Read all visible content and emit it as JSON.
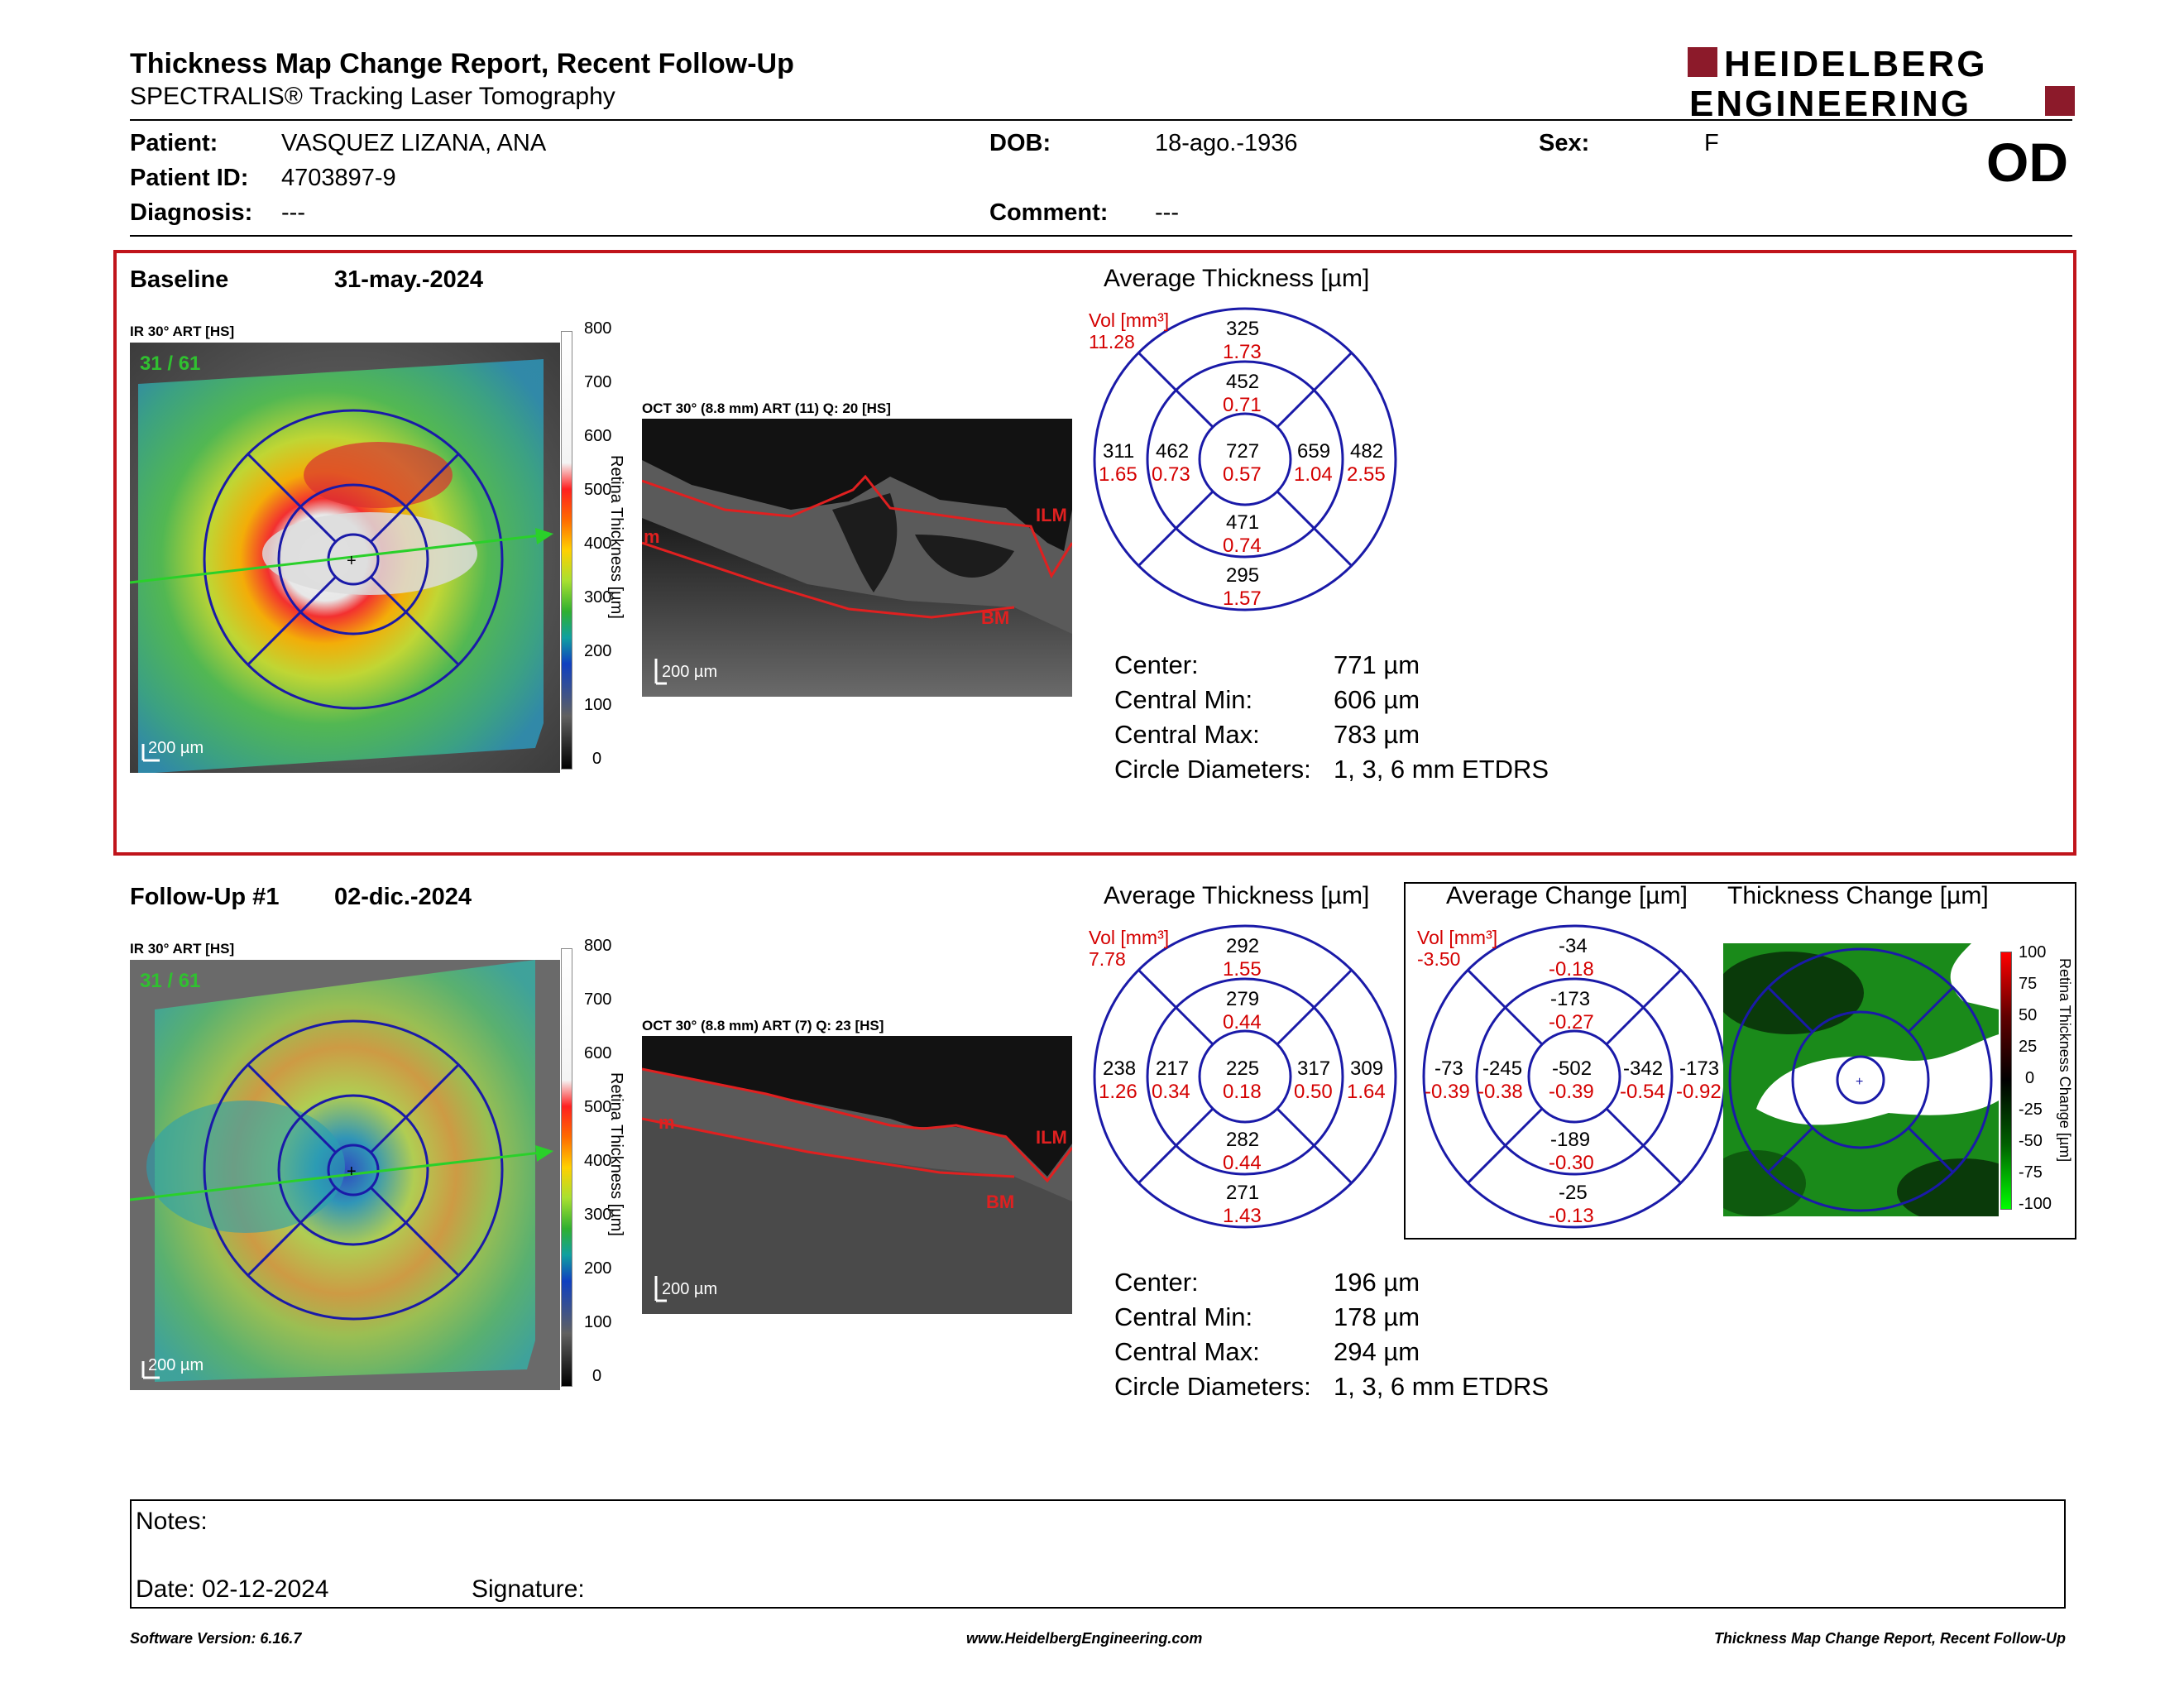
{
  "header": {
    "title": "Thickness Map Change Report, Recent Follow-Up",
    "subtitle": "SPECTRALIS® Tracking Laser Tomography",
    "logo_line1": "HEIDELBERG",
    "logo_line2": "ENGINEERING",
    "eye": "OD"
  },
  "patient": {
    "patient_label": "Patient:",
    "patient_value": "VASQUEZ LIZANA, ANA",
    "id_label": "Patient ID:",
    "id_value": "4703897-9",
    "diagnosis_label": "Diagnosis:",
    "diagnosis_value": "---",
    "dob_label": "DOB:",
    "dob_value": "18-ago.-1936",
    "comment_label": "Comment:",
    "comment_value": "---",
    "sex_label": "Sex:",
    "sex_value": "F"
  },
  "baseline": {
    "label": "Baseline",
    "date": "31-may.-2024",
    "ir_label": "IR 30° ART [HS]",
    "ir_overlay": "31 / 61",
    "ir_scale": "200 µm",
    "oct_label": "OCT 30° (8.8 mm) ART (11) Q: 20 [HS]",
    "oct_scale": "200 µm",
    "scale_ticks": [
      "800",
      "700",
      "600",
      "500",
      "400",
      "300",
      "200",
      "100",
      "0"
    ],
    "scale_title": "Retina Thickness [µm]",
    "chart_title": "Average Thickness [µm]",
    "vol_label": "Vol [mm³]",
    "vol_total": "11.28",
    "sectors": {
      "outer_top": [
        "325",
        "1.73"
      ],
      "inner_top": [
        "452",
        "0.71"
      ],
      "outer_left": [
        "311",
        "1.65"
      ],
      "inner_left": [
        "462",
        "0.73"
      ],
      "center": [
        "727",
        "0.57"
      ],
      "inner_right": [
        "659",
        "1.04"
      ],
      "outer_right": [
        "482",
        "2.55"
      ],
      "inner_bottom": [
        "471",
        "0.74"
      ],
      "outer_bottom": [
        "295",
        "1.57"
      ]
    },
    "stats": [
      {
        "label": "Center:",
        "value": "771 µm"
      },
      {
        "label": "Central Min:",
        "value": "606 µm"
      },
      {
        "label": "Central Max:",
        "value": "783 µm"
      },
      {
        "label": "Circle Diameters:",
        "value": "1, 3, 6 mm ETDRS"
      }
    ]
  },
  "followup": {
    "label": "Follow-Up #1",
    "date": "02-dic.-2024",
    "ir_label": "IR 30° ART [HS]",
    "ir_overlay": "31 / 61",
    "ir_scale": "200 µm",
    "oct_label": "OCT 30° (8.8 mm) ART (7) Q: 23 [HS]",
    "oct_scale": "200 µm",
    "scale_ticks": [
      "800",
      "700",
      "600",
      "500",
      "400",
      "300",
      "200",
      "100",
      "0"
    ],
    "scale_title": "Retina Thickness [µm]",
    "chart_title": "Average Thickness [µm]",
    "vol_label": "Vol [mm³]",
    "vol_total": "7.78",
    "sectors": {
      "outer_top": [
        "292",
        "1.55"
      ],
      "inner_top": [
        "279",
        "0.44"
      ],
      "outer_left": [
        "238",
        "1.26"
      ],
      "inner_left": [
        "217",
        "0.34"
      ],
      "center": [
        "225",
        "0.18"
      ],
      "inner_right": [
        "317",
        "0.50"
      ],
      "outer_right": [
        "309",
        "1.64"
      ],
      "inner_bottom": [
        "282",
        "0.44"
      ],
      "outer_bottom": [
        "271",
        "1.43"
      ]
    },
    "stats": [
      {
        "label": "Center:",
        "value": "196 µm"
      },
      {
        "label": "Central Min:",
        "value": "178 µm"
      },
      {
        "label": "Central Max:",
        "value": "294 µm"
      },
      {
        "label": "Circle Diameters:",
        "value": "1, 3, 6 mm ETDRS"
      }
    ]
  },
  "change": {
    "chart_title": "Average Change [µm]",
    "map_title": "Thickness Change [µm]",
    "vol_label": "Vol [mm³]",
    "vol_total": "-3.50",
    "sectors": {
      "outer_top": [
        "-34",
        "-0.18"
      ],
      "inner_top": [
        "-173",
        "-0.27"
      ],
      "outer_left": [
        "-73",
        "-0.39"
      ],
      "inner_left": [
        "-245",
        "-0.38"
      ],
      "center": [
        "-502",
        "-0.39"
      ],
      "inner_right": [
        "-342",
        "-0.54"
      ],
      "outer_right": [
        "-173",
        "-0.92"
      ],
      "inner_bottom": [
        "-189",
        "-0.30"
      ],
      "outer_bottom": [
        "-25",
        "-0.13"
      ]
    },
    "scale_ticks": [
      "100",
      "75",
      "50",
      "25",
      "0",
      "-25",
      "-50",
      "-75",
      "-100"
    ],
    "scale_title": "Retina Thickness Change [µm]"
  },
  "notes": {
    "notes_label": "Notes:",
    "date_label": "Date: 02-12-2024",
    "signature_label": "Signature:"
  },
  "footer": {
    "version": "Software Version: 6.16.7",
    "url": "www.HeidelbergEngineering.com",
    "report": "Thickness Map Change Report, Recent Follow-Up"
  },
  "colors": {
    "frame_red": "#c0141b",
    "etdrs_blue": "#1a1aa8",
    "volume_red": "#d40000",
    "logo_red": "#8c1a2a"
  }
}
